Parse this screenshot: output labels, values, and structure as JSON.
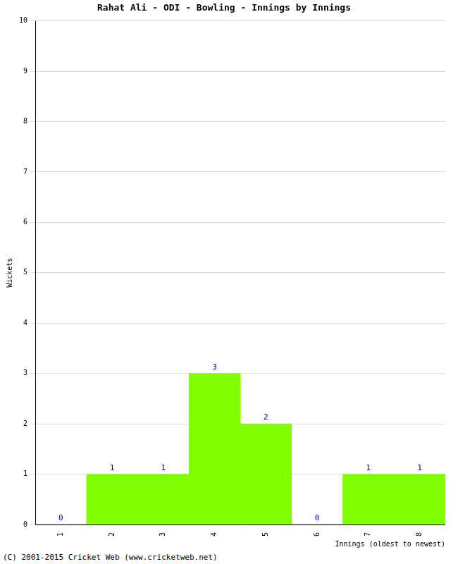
{
  "chart_data": {
    "type": "bar",
    "title": "Rahat Ali - ODI - Bowling - Innings by Innings",
    "x_label": "Innings (oldest to newest)",
    "y_label": "Wickets",
    "annotations": [
      "(C) 2001-2015 Cricket Web (www.cricketweb.net)"
    ],
    "categories": [
      "1",
      "2",
      "3",
      "4",
      "5",
      "6",
      "7",
      "8"
    ],
    "values": [
      0,
      1,
      1,
      3,
      2,
      0,
      1,
      1
    ],
    "color": "#7fff00",
    "ylim": [
      0,
      10
    ],
    "yticks": [
      0,
      1,
      2,
      3,
      4,
      5,
      6,
      7,
      8,
      9,
      10
    ],
    "grid": true,
    "data_labels": true
  }
}
